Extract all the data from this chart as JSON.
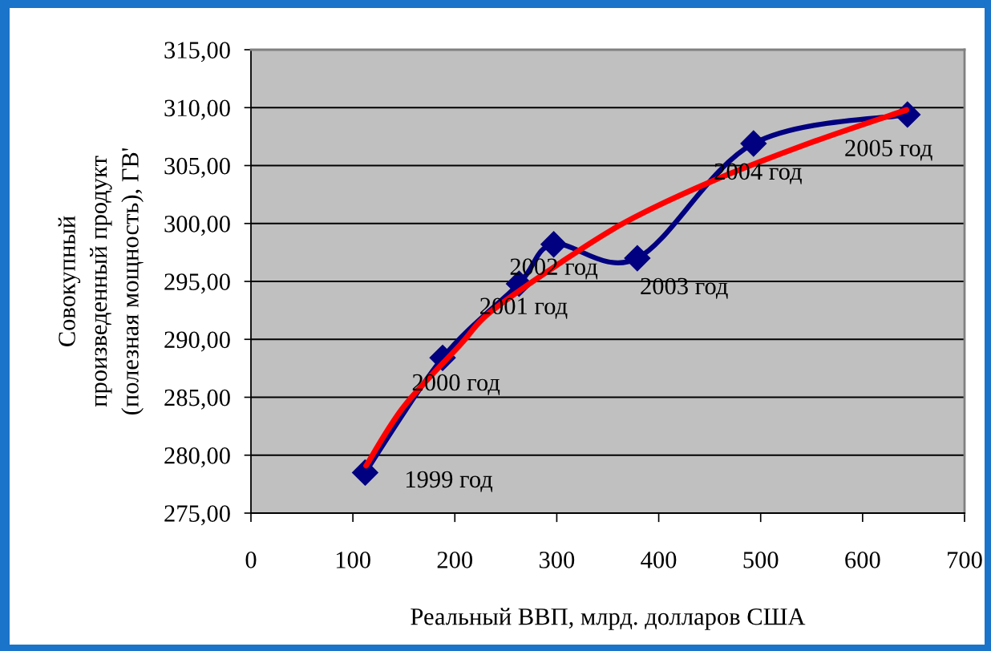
{
  "chart_data": {
    "type": "line",
    "xlabel": "Реальный ВВП, млрд. долларов США",
    "ylabel": "Совокупный\nпроизведенный продукт\n(полезная мощность), ГВ'",
    "xlim": [
      0,
      700
    ],
    "xticks": [
      0,
      100,
      200,
      300,
      400,
      500,
      600,
      700
    ],
    "ylim": [
      275,
      315
    ],
    "yticks": [
      {
        "value": 275,
        "label": "275,00"
      },
      {
        "value": 280,
        "label": "280,00"
      },
      {
        "value": 285,
        "label": "285,00"
      },
      {
        "value": 290,
        "label": "290,00"
      },
      {
        "value": 295,
        "label": "295,00"
      },
      {
        "value": 300,
        "label": "300,00"
      },
      {
        "value": 305,
        "label": "305,00"
      },
      {
        "value": 310,
        "label": "310,00"
      },
      {
        "value": 315,
        "label": "315,00"
      }
    ],
    "grid": "y",
    "series": [
      {
        "color": "#000080",
        "marker": "diamond",
        "x": [
          112,
          188,
          263,
          297,
          379,
          493,
          644
        ],
        "values": [
          278.5,
          288.4,
          294.8,
          298.2,
          297.0,
          306.9,
          309.4
        ]
      },
      {
        "color": "#ff0000",
        "marker": "none",
        "x": [
          113,
          150,
          205,
          234,
          300,
          367,
          451,
          550,
          643
        ],
        "values": [
          279.1,
          284.2,
          289.5,
          292.3,
          296.4,
          300.1,
          303.6,
          307.0,
          309.8
        ]
      }
    ],
    "annotations": [
      {
        "text": "1999 год",
        "x": 112,
        "y": 278.5
      },
      {
        "text": "2000 год",
        "x": 188,
        "y": 288.4
      },
      {
        "text": "2001 год",
        "x": 263,
        "y": 294.8
      },
      {
        "text": "2002 год",
        "x": 297,
        "y": 298.2
      },
      {
        "text": "2003 год",
        "x": 379,
        "y": 297.0
      },
      {
        "text": "2004 год",
        "x": 493,
        "y": 306.9
      },
      {
        "text": "2005 год",
        "x": 644,
        "y": 309.4
      }
    ]
  }
}
